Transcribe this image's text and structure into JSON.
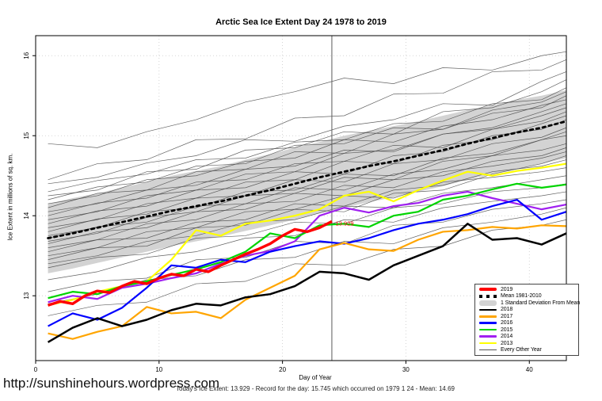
{
  "footer": {
    "url": "http://sunshinehours.wordpress.com"
  },
  "chart_data": {
    "type": "line",
    "title": "Arctic Sea Ice Extent Day 24 1978 to 2019",
    "xlabel": "Day of Year",
    "ylabel": "Ice Extent in millions of sq. km.",
    "subtitle": "Today's Ice Extent: 13.929  - Record for the day: 15.745 which occurred on 1979 1 24  - Mean: 14.69",
    "x_domain": [
      0,
      43
    ],
    "y_domain": [
      12.19,
      16.25
    ],
    "x_ticks": [
      0,
      10,
      20,
      30,
      40
    ],
    "y_ticks": [
      13,
      14,
      15,
      16
    ],
    "grid": "dotted",
    "grid_color": "#c9c9c9",
    "vline": {
      "x": 24,
      "color": "#5a5a5a"
    },
    "annotation": {
      "text": "13.929",
      "x": 24.3,
      "y": 13.9,
      "color": "#ff0000"
    },
    "band": {
      "label": "1 Standard Deviation From Mean",
      "color": "#d3d3d3",
      "x": [
        1,
        3,
        5,
        7,
        9,
        11,
        13,
        15,
        17,
        19,
        21,
        23,
        25,
        27,
        29,
        31,
        33,
        35,
        37,
        39,
        41,
        43
      ],
      "top": [
        14.15,
        14.22,
        14.28,
        14.35,
        14.42,
        14.5,
        14.56,
        14.62,
        14.7,
        14.77,
        14.85,
        14.92,
        15.0,
        15.06,
        15.12,
        15.18,
        15.25,
        15.32,
        15.38,
        15.45,
        15.5,
        15.57
      ],
      "bottom": [
        13.28,
        13.34,
        13.41,
        13.48,
        13.55,
        13.62,
        13.68,
        13.74,
        13.81,
        13.88,
        13.95,
        14.03,
        14.1,
        14.17,
        14.23,
        14.3,
        14.37,
        14.45,
        14.52,
        14.59,
        14.65,
        14.72
      ]
    },
    "mean": {
      "label": "Mean 1981-2010",
      "color": "#000000",
      "style": "dashed",
      "x": [
        1,
        3,
        5,
        7,
        9,
        11,
        13,
        15,
        17,
        19,
        21,
        23,
        25,
        27,
        29,
        31,
        33,
        35,
        37,
        39,
        41,
        43
      ],
      "values": [
        13.72,
        13.78,
        13.85,
        13.92,
        13.99,
        14.06,
        14.12,
        14.18,
        14.25,
        14.32,
        14.4,
        14.48,
        14.55,
        14.62,
        14.68,
        14.75,
        14.82,
        14.9,
        14.97,
        15.04,
        15.1,
        15.18
      ]
    },
    "series": [
      {
        "name": "2013",
        "color": "#ffff00",
        "width": 2.2,
        "x": [
          1,
          3,
          5,
          7,
          9,
          11,
          13,
          15,
          17,
          19,
          21,
          23,
          25,
          27,
          29,
          31,
          33,
          35,
          37,
          39,
          41,
          43
        ],
        "values": [
          12.88,
          12.95,
          13.05,
          13.12,
          13.18,
          13.45,
          13.82,
          13.75,
          13.9,
          13.94,
          14.0,
          14.08,
          14.25,
          14.3,
          14.18,
          14.32,
          14.44,
          14.55,
          14.5,
          14.56,
          14.6,
          14.65
        ]
      },
      {
        "name": "2014",
        "color": "#a020f0",
        "width": 2.2,
        "x": [
          1,
          3,
          5,
          7,
          9,
          11,
          13,
          15,
          17,
          19,
          21,
          23,
          25,
          27,
          29,
          31,
          33,
          35,
          37,
          39,
          41,
          43
        ],
        "values": [
          12.92,
          13.0,
          12.96,
          13.1,
          13.15,
          13.22,
          13.28,
          13.4,
          13.5,
          13.56,
          13.68,
          14.0,
          14.1,
          14.04,
          14.12,
          14.16,
          14.25,
          14.3,
          14.22,
          14.15,
          14.08,
          14.14
        ]
      },
      {
        "name": "2015",
        "color": "#00d400",
        "width": 2.2,
        "x": [
          1,
          3,
          5,
          7,
          9,
          11,
          13,
          15,
          17,
          19,
          21,
          23,
          25,
          27,
          29,
          31,
          33,
          35,
          37,
          39,
          41,
          43
        ],
        "values": [
          12.97,
          13.05,
          13.02,
          13.12,
          13.18,
          13.26,
          13.33,
          13.42,
          13.55,
          13.78,
          13.72,
          13.88,
          13.9,
          13.86,
          14.0,
          14.05,
          14.2,
          14.25,
          14.33,
          14.4,
          14.35,
          14.39
        ]
      },
      {
        "name": "2016",
        "color": "#0000ff",
        "width": 2.2,
        "x": [
          1,
          3,
          5,
          7,
          9,
          11,
          13,
          15,
          17,
          19,
          21,
          23,
          25,
          27,
          29,
          31,
          33,
          35,
          37,
          39,
          41,
          43
        ],
        "values": [
          12.62,
          12.78,
          12.7,
          12.85,
          13.1,
          13.38,
          13.35,
          13.45,
          13.42,
          13.55,
          13.62,
          13.68,
          13.65,
          13.72,
          13.82,
          13.9,
          13.95,
          14.02,
          14.12,
          14.2,
          13.95,
          14.05
        ]
      },
      {
        "name": "2017",
        "color": "#ffa500",
        "width": 2.2,
        "x": [
          1,
          3,
          5,
          7,
          9,
          11,
          13,
          15,
          17,
          19,
          21,
          23,
          25,
          27,
          29,
          31,
          33,
          35,
          37,
          39,
          41,
          43
        ],
        "values": [
          12.53,
          12.46,
          12.55,
          12.62,
          12.86,
          12.78,
          12.8,
          12.72,
          12.95,
          13.1,
          13.25,
          13.58,
          13.66,
          13.58,
          13.56,
          13.7,
          13.8,
          13.82,
          13.86,
          13.84,
          13.88,
          13.87
        ]
      },
      {
        "name": "2018",
        "color": "#000000",
        "width": 2.5,
        "x": [
          1,
          3,
          5,
          7,
          9,
          11,
          13,
          15,
          17,
          19,
          21,
          23,
          25,
          27,
          29,
          31,
          33,
          35,
          37,
          39,
          41,
          43
        ],
        "values": [
          12.42,
          12.6,
          12.72,
          12.62,
          12.7,
          12.82,
          12.9,
          12.88,
          12.98,
          13.02,
          13.12,
          13.3,
          13.28,
          13.2,
          13.38,
          13.5,
          13.62,
          13.9,
          13.7,
          13.72,
          13.64,
          13.78
        ]
      },
      {
        "name": "2019",
        "color": "#ff0000",
        "width": 3.4,
        "x": [
          1,
          2,
          3,
          4,
          5,
          6,
          7,
          8,
          9,
          10,
          11,
          12,
          13,
          14,
          15,
          16,
          17,
          18,
          19,
          20,
          21,
          22,
          23,
          24
        ],
        "values": [
          12.88,
          12.93,
          12.9,
          13.0,
          13.06,
          13.04,
          13.12,
          13.18,
          13.15,
          13.22,
          13.27,
          13.25,
          13.33,
          13.3,
          13.38,
          13.45,
          13.52,
          13.58,
          13.65,
          13.75,
          13.83,
          13.8,
          13.85,
          13.929
        ]
      }
    ],
    "other_years": {
      "label": "Every Other Year",
      "color": "#474747",
      "x": [
        1,
        5,
        9,
        13,
        17,
        21,
        25,
        29,
        33,
        37,
        41,
        43
      ],
      "lines": [
        [
          14.9,
          14.85,
          15.05,
          15.2,
          15.42,
          15.55,
          15.72,
          15.65,
          15.85,
          15.82,
          16.0,
          16.05
        ],
        [
          14.45,
          14.65,
          14.7,
          14.95,
          14.96,
          15.22,
          15.25,
          15.52,
          15.53,
          15.8,
          15.82,
          15.95
        ],
        [
          14.4,
          14.48,
          14.66,
          14.75,
          14.95,
          14.93,
          15.12,
          15.2,
          15.4,
          15.38,
          15.68,
          15.8
        ],
        [
          14.3,
          14.44,
          14.52,
          14.7,
          14.72,
          14.92,
          14.95,
          15.15,
          15.18,
          15.4,
          15.45,
          15.6
        ],
        [
          14.25,
          14.32,
          14.55,
          14.58,
          14.82,
          14.85,
          15.05,
          15.02,
          15.3,
          15.35,
          15.55,
          15.7
        ],
        [
          14.2,
          14.36,
          14.42,
          14.62,
          14.65,
          14.88,
          14.9,
          15.1,
          15.08,
          15.32,
          15.42,
          15.55
        ],
        [
          14.15,
          14.25,
          14.45,
          14.5,
          14.68,
          14.72,
          14.95,
          14.92,
          15.12,
          15.2,
          15.38,
          15.45
        ],
        [
          14.1,
          14.28,
          14.32,
          14.55,
          14.58,
          14.8,
          14.78,
          15.02,
          15.08,
          15.28,
          15.35,
          15.5
        ],
        [
          14.05,
          14.15,
          14.32,
          14.38,
          14.58,
          14.62,
          14.82,
          14.8,
          15.02,
          15.08,
          15.25,
          15.35
        ],
        [
          14.0,
          14.16,
          14.22,
          14.42,
          14.45,
          14.65,
          14.68,
          14.88,
          14.85,
          15.08,
          15.18,
          15.3
        ],
        [
          13.95,
          14.05,
          14.25,
          14.32,
          14.52,
          14.55,
          14.78,
          14.82,
          15.02,
          15.1,
          15.3,
          15.4
        ],
        [
          13.9,
          14.06,
          14.12,
          14.32,
          14.35,
          14.55,
          14.52,
          14.75,
          14.8,
          15.0,
          15.08,
          15.2
        ],
        [
          13.85,
          13.95,
          14.15,
          14.22,
          14.42,
          14.45,
          14.68,
          14.65,
          14.88,
          14.95,
          15.15,
          15.25
        ],
        [
          13.8,
          13.96,
          14.02,
          14.22,
          14.25,
          14.45,
          14.42,
          14.65,
          14.7,
          14.9,
          14.98,
          15.1
        ],
        [
          13.75,
          13.85,
          14.05,
          14.1,
          14.3,
          14.32,
          14.52,
          14.5,
          14.72,
          14.78,
          14.95,
          15.0
        ],
        [
          13.72,
          13.86,
          13.92,
          14.12,
          14.15,
          14.35,
          14.32,
          14.52,
          14.58,
          14.75,
          14.82,
          14.9
        ],
        [
          13.68,
          13.78,
          13.98,
          14.05,
          14.25,
          14.28,
          14.48,
          14.45,
          14.68,
          14.75,
          14.95,
          15.05
        ],
        [
          13.65,
          13.8,
          13.85,
          14.05,
          14.08,
          14.28,
          14.25,
          14.45,
          14.5,
          14.68,
          14.75,
          14.85
        ],
        [
          13.6,
          13.7,
          13.9,
          13.95,
          14.15,
          14.18,
          14.38,
          14.35,
          14.55,
          14.62,
          14.72,
          14.8
        ],
        [
          13.55,
          13.7,
          13.72,
          13.92,
          13.95,
          14.15,
          14.12,
          14.32,
          14.38,
          14.55,
          14.62,
          14.7
        ],
        [
          13.5,
          13.6,
          13.8,
          13.85,
          14.05,
          14.08,
          14.25,
          14.22,
          14.42,
          14.48,
          14.55,
          14.6
        ],
        [
          13.45,
          13.6,
          13.62,
          13.85,
          13.88,
          14.08,
          14.05,
          14.28,
          14.32,
          14.52,
          14.65,
          14.75
        ],
        [
          13.4,
          13.5,
          13.68,
          13.75,
          13.92,
          13.95,
          14.12,
          14.1,
          14.28,
          14.35,
          14.45,
          14.5
        ],
        [
          13.35,
          13.48,
          13.52,
          13.72,
          13.75,
          13.92,
          13.9,
          14.1,
          14.15,
          14.3,
          14.35,
          14.4
        ],
        [
          13.2,
          13.3,
          13.48,
          13.55,
          13.72,
          13.75,
          13.95,
          13.92,
          14.1,
          14.18,
          14.25,
          14.3
        ],
        [
          13.05,
          13.18,
          13.22,
          13.45,
          13.48,
          13.68,
          13.65,
          13.88,
          13.92,
          14.08,
          14.15,
          14.2
        ],
        [
          12.9,
          13.02,
          13.2,
          13.25,
          13.45,
          13.48,
          13.68,
          13.65,
          13.85,
          13.92,
          14.02,
          14.1
        ],
        [
          12.75,
          12.88,
          12.92,
          13.15,
          13.18,
          13.4,
          13.38,
          13.58,
          13.62,
          13.82,
          13.88,
          13.95
        ]
      ]
    },
    "legend": {
      "position": "bottom-right",
      "items": [
        {
          "label": "2019",
          "color": "#ff0000",
          "swatch": "thick-line"
        },
        {
          "label": "Mean 1981-2010",
          "color": "#000000",
          "swatch": "dashed-line"
        },
        {
          "label": "1 Standard Deviation From Mean",
          "color": "#d3d3d3",
          "swatch": "band"
        },
        {
          "label": "2018",
          "color": "#000000",
          "swatch": "line"
        },
        {
          "label": "2017",
          "color": "#ffa500",
          "swatch": "line"
        },
        {
          "label": "2016",
          "color": "#0000ff",
          "swatch": "line"
        },
        {
          "label": "2015",
          "color": "#00d400",
          "swatch": "line"
        },
        {
          "label": "2014",
          "color": "#a020f0",
          "swatch": "line"
        },
        {
          "label": "2013",
          "color": "#ffff00",
          "swatch": "line"
        },
        {
          "label": "Every Other Year",
          "color": "#555555",
          "swatch": "thin-line"
        }
      ]
    }
  }
}
